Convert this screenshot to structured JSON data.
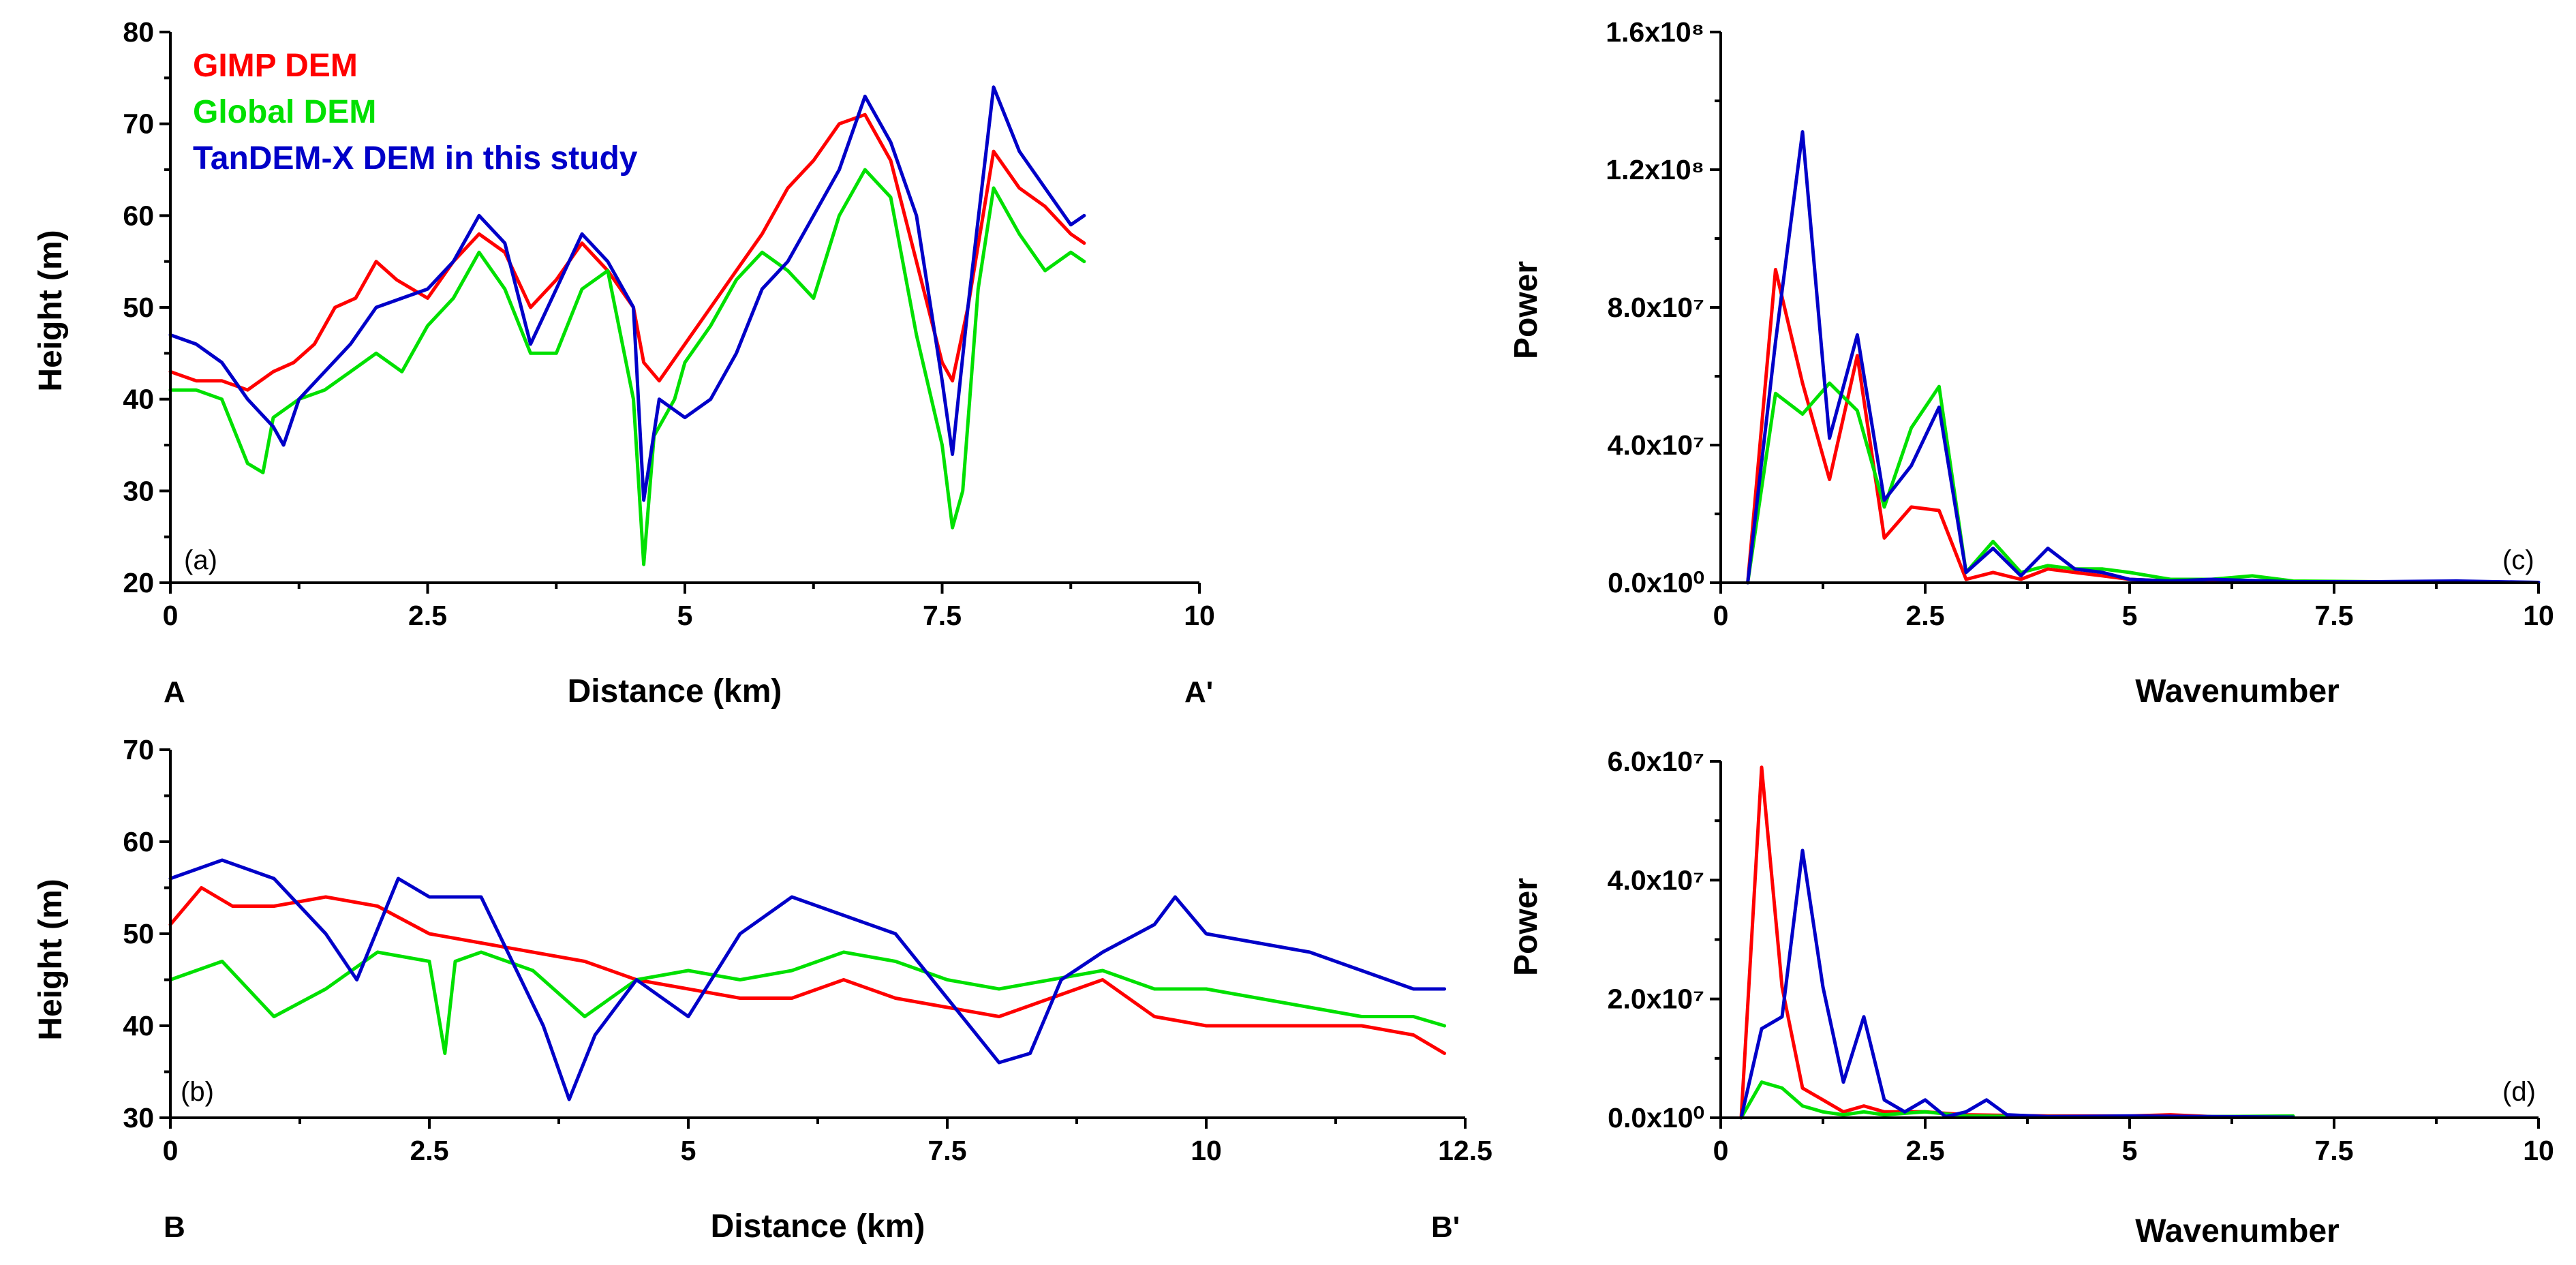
{
  "colors": {
    "gimp": "#ff0000",
    "global": "#00e000",
    "tandem": "#0000c8"
  },
  "chart_data": [
    {
      "type": "line",
      "panel_label": "(a)",
      "xlabel": "Distance (km)",
      "ylabel": "Height (m)",
      "xlim": [
        0,
        10
      ],
      "ylim": [
        20,
        80
      ],
      "xticks": [
        "0",
        "2.5",
        "5",
        "7.5",
        "10"
      ],
      "yticks": [
        "20",
        "30",
        "40",
        "50",
        "60",
        "70",
        "80"
      ],
      "start_label": "A",
      "end_label": "A'",
      "legend": [
        "GIMP DEM",
        "Global DEM",
        "TanDEM-X DEM in this study"
      ],
      "series": [
        {
          "name": "GIMP DEM",
          "color": "#ff0000",
          "x": [
            0,
            0.25,
            0.5,
            0.75,
            1,
            1.2,
            1.4,
            1.6,
            1.8,
            2,
            2.2,
            2.5,
            2.75,
            3,
            3.25,
            3.5,
            3.75,
            4,
            4.25,
            4.5,
            4.6,
            4.75,
            5,
            5.25,
            5.5,
            5.75,
            6,
            6.25,
            6.5,
            6.75,
            7,
            7.25,
            7.5,
            7.6,
            7.75,
            8,
            8.25,
            8.5,
            8.75,
            8.88
          ],
          "values": [
            43,
            42,
            42,
            41,
            43,
            44,
            46,
            50,
            51,
            55,
            53,
            51,
            55,
            58,
            56,
            50,
            53,
            57,
            54,
            50,
            44,
            42,
            46,
            50,
            54,
            58,
            63,
            66,
            70,
            71,
            66,
            55,
            44,
            42,
            50,
            67,
            63,
            61,
            58,
            57
          ]
        },
        {
          "name": "Global DEM",
          "color": "#00e000",
          "x": [
            0,
            0.25,
            0.5,
            0.75,
            0.9,
            1,
            1.25,
            1.5,
            1.75,
            2,
            2.25,
            2.5,
            2.75,
            3,
            3.25,
            3.5,
            3.75,
            4,
            4.25,
            4.5,
            4.6,
            4.7,
            4.9,
            5,
            5.25,
            5.5,
            5.75,
            6,
            6.25,
            6.5,
            6.75,
            7,
            7.25,
            7.5,
            7.6,
            7.7,
            7.85,
            8,
            8.25,
            8.5,
            8.75,
            8.88
          ],
          "values": [
            41,
            41,
            40,
            33,
            32,
            38,
            40,
            41,
            43,
            45,
            43,
            48,
            51,
            56,
            52,
            45,
            45,
            52,
            54,
            40,
            22,
            36,
            40,
            44,
            48,
            53,
            56,
            54,
            51,
            60,
            65,
            62,
            47,
            35,
            26,
            30,
            52,
            63,
            58,
            54,
            56,
            55
          ]
        },
        {
          "name": "TanDEM-X DEM in this study",
          "color": "#0000c8",
          "x": [
            0,
            0.25,
            0.5,
            0.75,
            1,
            1.1,
            1.25,
            1.5,
            1.75,
            2,
            2.25,
            2.5,
            2.75,
            3,
            3.25,
            3.5,
            3.75,
            4,
            4.25,
            4.5,
            4.6,
            4.75,
            5,
            5.25,
            5.5,
            5.75,
            6,
            6.25,
            6.5,
            6.75,
            7,
            7.25,
            7.5,
            7.6,
            7.75,
            8,
            8.25,
            8.5,
            8.75,
            8.88
          ],
          "values": [
            47,
            46,
            44,
            40,
            37,
            35,
            40,
            43,
            46,
            50,
            51,
            52,
            55,
            60,
            57,
            46,
            52,
            58,
            55,
            50,
            29,
            40,
            38,
            40,
            45,
            52,
            55,
            60,
            65,
            73,
            68,
            60,
            42,
            34,
            50,
            74,
            67,
            63,
            59,
            60
          ]
        }
      ]
    },
    {
      "type": "line",
      "panel_label": "(b)",
      "xlabel": "Distance (km)",
      "ylabel": "Height (m)",
      "xlim": [
        0,
        12.5
      ],
      "ylim": [
        30,
        70
      ],
      "xticks": [
        "0",
        "2.5",
        "5",
        "7.5",
        "10",
        "12.5"
      ],
      "yticks": [
        "30",
        "40",
        "50",
        "60",
        "70"
      ],
      "start_label": "B",
      "end_label": "B'",
      "series": [
        {
          "name": "GIMP DEM",
          "color": "#ff0000",
          "x": [
            0,
            0.3,
            0.6,
            1,
            1.5,
            2,
            2.5,
            3,
            3.5,
            4,
            4.5,
            5,
            5.5,
            6,
            6.5,
            7,
            7.5,
            8,
            8.5,
            9,
            9.5,
            10,
            10.5,
            11,
            11.5,
            12,
            12.3
          ],
          "values": [
            51,
            55,
            53,
            53,
            54,
            53,
            50,
            49,
            48,
            47,
            45,
            44,
            43,
            43,
            45,
            43,
            42,
            41,
            43,
            45,
            41,
            40,
            40,
            40,
            40,
            39,
            37
          ]
        },
        {
          "name": "Global DEM",
          "color": "#00e000",
          "x": [
            0,
            0.5,
            1,
            1.5,
            2,
            2.5,
            2.65,
            2.75,
            3,
            3.5,
            4,
            4.5,
            5,
            5.5,
            6,
            6.5,
            7,
            7.5,
            8,
            8.5,
            9,
            9.5,
            10,
            10.5,
            11,
            11.5,
            12,
            12.3
          ],
          "values": [
            45,
            47,
            41,
            44,
            48,
            47,
            37,
            47,
            48,
            46,
            41,
            45,
            46,
            45,
            46,
            48,
            47,
            45,
            44,
            45,
            46,
            44,
            44,
            43,
            42,
            41,
            41,
            40
          ]
        },
        {
          "name": "TanDEM-X DEM in this study",
          "color": "#0000c8",
          "x": [
            0,
            0.5,
            1,
            1.5,
            1.8,
            2.2,
            2.5,
            3,
            3.3,
            3.6,
            3.85,
            4.1,
            4.5,
            5,
            5.5,
            6,
            6.5,
            7,
            7.5,
            8,
            8.3,
            8.6,
            9,
            9.5,
            9.7,
            10,
            10.5,
            11,
            11.5,
            12,
            12.3
          ],
          "values": [
            56,
            58,
            56,
            50,
            45,
            56,
            54,
            54,
            47,
            40,
            32,
            39,
            45,
            41,
            50,
            54,
            52,
            50,
            43,
            36,
            37,
            45,
            48,
            51,
            54,
            50,
            49,
            48,
            46,
            44,
            44
          ]
        }
      ]
    },
    {
      "type": "line",
      "panel_label": "(c)",
      "xlabel": "Wavenumber",
      "ylabel": "Power",
      "xlim": [
        0,
        10
      ],
      "ylim": [
        0,
        160000000
      ],
      "xticks": [
        "0",
        "2.5",
        "5",
        "7.5",
        "10"
      ],
      "yticks": [
        "0.0x10⁰",
        "4.0x10⁷",
        "8.0x10⁷",
        "1.2x10⁸",
        "1.6x10⁸"
      ],
      "series": [
        {
          "name": "GIMP DEM",
          "color": "#ff0000",
          "x": [
            0.33,
            0.67,
            1,
            1.33,
            1.67,
            2,
            2.33,
            2.67,
            3,
            3.33,
            3.67,
            4,
            4.33,
            4.67,
            5,
            5.5,
            6,
            7,
            8,
            9,
            10
          ],
          "values": [
            0,
            91000000,
            58000000,
            30000000,
            66000000,
            13000000,
            22000000,
            21000000,
            1000000,
            3000000,
            1000000,
            4000000,
            3000000,
            2000000,
            1000000,
            500000,
            500000,
            300000,
            200000,
            100000,
            100000
          ]
        },
        {
          "name": "Global DEM",
          "color": "#00e000",
          "x": [
            0.33,
            0.67,
            1,
            1.33,
            1.67,
            2,
            2.33,
            2.67,
            3,
            3.33,
            3.67,
            4,
            4.33,
            4.67,
            5,
            5.5,
            6,
            6.5,
            7,
            8,
            9,
            10
          ],
          "values": [
            0,
            55000000,
            49000000,
            58000000,
            50000000,
            22000000,
            45000000,
            57000000,
            3000000,
            12000000,
            3000000,
            5000000,
            4000000,
            4000000,
            3000000,
            1000000,
            1000000,
            2000000,
            500000,
            300000,
            200000,
            100000
          ]
        },
        {
          "name": "TanDEM-X DEM in this study",
          "color": "#0000c8",
          "x": [
            0.33,
            0.67,
            1,
            1.33,
            1.67,
            2,
            2.33,
            2.67,
            3,
            3.33,
            3.67,
            4,
            4.33,
            4.67,
            5,
            5.5,
            6,
            7,
            8,
            9,
            10
          ],
          "values": [
            0,
            70000000,
            131000000,
            42000000,
            72000000,
            24000000,
            34000000,
            51000000,
            3000000,
            10000000,
            2000000,
            10000000,
            4000000,
            3000000,
            1000000,
            500000,
            1000000,
            300000,
            300000,
            500000,
            100000
          ]
        }
      ]
    },
    {
      "type": "line",
      "panel_label": "(d)",
      "xlabel": "Wavenumber",
      "ylabel": "Power",
      "xlim": [
        0,
        10
      ],
      "ylim": [
        0,
        60000000
      ],
      "xticks": [
        "0",
        "2.5",
        "5",
        "7.5",
        "10"
      ],
      "yticks": [
        "0.0x10⁰",
        "2.0x10⁷",
        "4.0x10⁷",
        "6.0x10⁷"
      ],
      "series": [
        {
          "name": "GIMP DEM",
          "color": "#ff0000",
          "x": [
            0.25,
            0.5,
            0.75,
            1,
            1.25,
            1.5,
            1.75,
            2,
            2.5,
            3,
            4,
            5,
            5.5,
            6,
            7
          ],
          "values": [
            0,
            59000000,
            22000000,
            5000000,
            3000000,
            1000000,
            2000000,
            1000000,
            1000000,
            500000,
            300000,
            300000,
            500000,
            200000,
            100000
          ]
        },
        {
          "name": "Global DEM",
          "color": "#00e000",
          "x": [
            0.25,
            0.5,
            0.75,
            1,
            1.25,
            1.5,
            1.75,
            2,
            2.5,
            3,
            4,
            5,
            6,
            7
          ],
          "values": [
            0,
            6000000,
            5000000,
            2000000,
            1000000,
            500000,
            1000000,
            500000,
            1000000,
            300000,
            200000,
            200000,
            200000,
            300000
          ]
        },
        {
          "name": "TanDEM-X DEM in this study",
          "color": "#0000c8",
          "x": [
            0.25,
            0.5,
            0.75,
            1,
            1.25,
            1.5,
            1.75,
            2,
            2.25,
            2.5,
            2.75,
            3,
            3.25,
            3.5,
            4,
            5,
            6,
            7
          ],
          "values": [
            0,
            15000000,
            17000000,
            45000000,
            22000000,
            6000000,
            17000000,
            3000000,
            1000000,
            3000000,
            200000,
            1000000,
            3000000,
            500000,
            200000,
            300000,
            200000,
            100000
          ]
        }
      ]
    }
  ]
}
